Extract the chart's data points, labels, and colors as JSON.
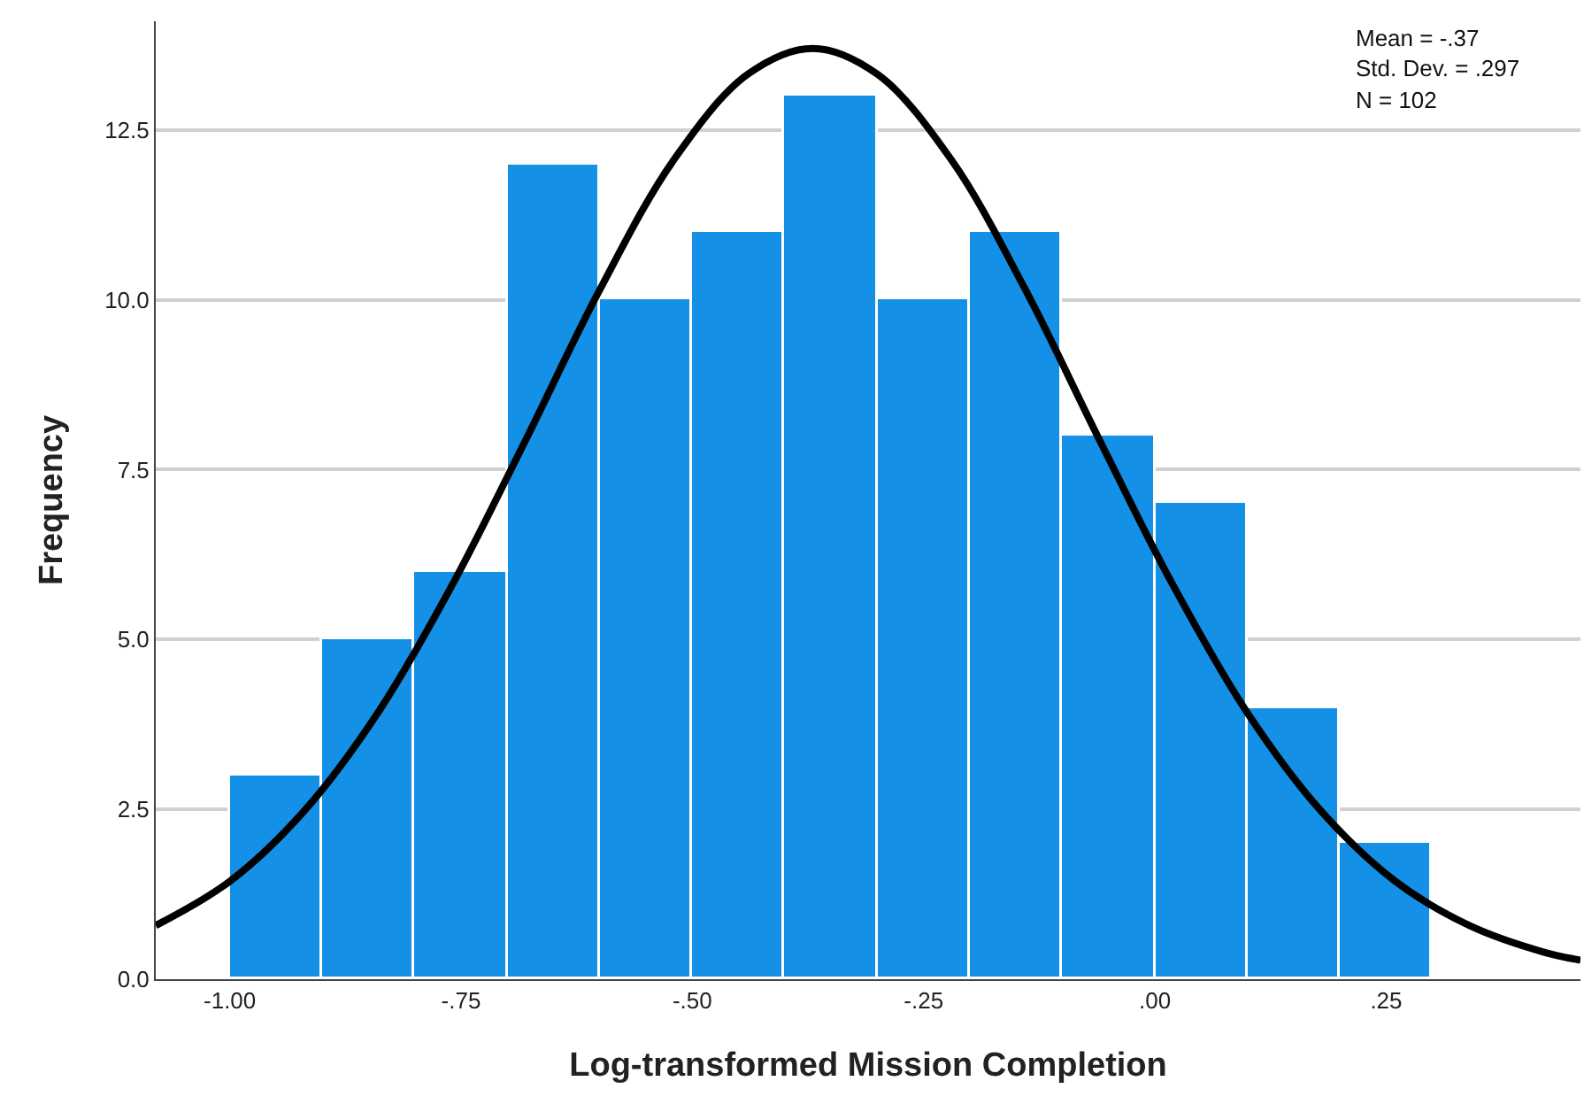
{
  "chart_data": {
    "type": "histogram",
    "xlabel": "Log-transformed Mission Completion",
    "ylabel": "Frequency",
    "series": [
      {
        "bins": [
          -1.0,
          -0.9,
          -0.8,
          -0.7,
          -0.6,
          -0.5,
          -0.4,
          -0.3,
          -0.2,
          -0.1,
          0.0,
          0.1,
          0.2,
          0.3
        ],
        "values": [
          3,
          5,
          6,
          12,
          10,
          11,
          13,
          10,
          11,
          8,
          7,
          4,
          2
        ],
        "color": "#1490e6"
      },
      {
        "type": "line",
        "x": [
          -1.08,
          -1.0,
          -0.92,
          -0.84,
          -0.76,
          -0.68,
          -0.6,
          -0.52,
          -0.44,
          -0.37,
          -0.3,
          -0.22,
          -0.14,
          -0.06,
          0.02,
          0.1,
          0.18,
          0.26,
          0.34,
          0.42,
          0.46
        ],
        "values": [
          0.79,
          1.44,
          2.47,
          3.92,
          5.79,
          7.94,
          10.15,
          12.06,
          13.32,
          13.7,
          13.32,
          12.06,
          10.15,
          7.94,
          5.79,
          3.92,
          2.47,
          1.44,
          0.79,
          0.4,
          0.28
        ],
        "color": "#000000"
      }
    ],
    "annotations": [
      "Mean = -.37",
      "Std. Dev. = .297",
      "N = 102"
    ],
    "xlim": [
      -1.08,
      0.46
    ],
    "xticks": [
      {
        "value": -1.0,
        "label": "-1.00"
      },
      {
        "value": -0.75,
        "label": "-.75"
      },
      {
        "value": -0.5,
        "label": "-.50"
      },
      {
        "value": -0.25,
        "label": "-.25"
      },
      {
        "value": 0.0,
        "label": ".00"
      },
      {
        "value": 0.25,
        "label": ".25"
      }
    ],
    "ylim": [
      0,
      14.1
    ],
    "yticks": [
      {
        "value": 0,
        "label": "0.0"
      },
      {
        "value": 2.5,
        "label": "2.5"
      },
      {
        "value": 5,
        "label": "5.0"
      },
      {
        "value": 7.5,
        "label": "7.5"
      },
      {
        "value": 10,
        "label": "10.0"
      },
      {
        "value": 12.5,
        "label": "12.5"
      }
    ],
    "grid": "y"
  }
}
